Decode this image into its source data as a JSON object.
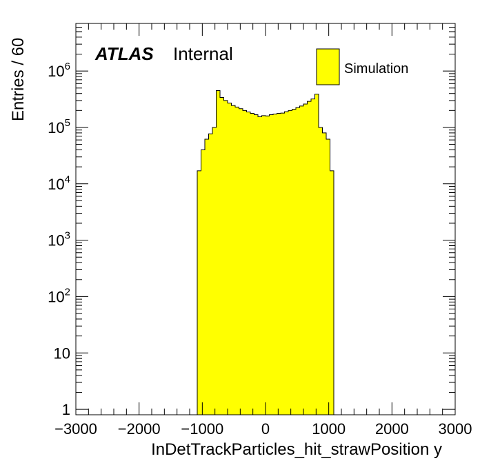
{
  "header": {
    "experiment": "ATLAS",
    "status": "Internal"
  },
  "legend": {
    "label": "Simulation",
    "color": "#ffff00",
    "placement": "top-right"
  },
  "chart_data": {
    "type": "bar",
    "xlabel": "InDetTrackParticles_hit_strawPosition y",
    "ylabel": "Entries / 60",
    "xlim": [
      -3000,
      3000
    ],
    "ylim": [
      0.8,
      7000000
    ],
    "yscale": "log",
    "grid": false,
    "bin_width": 60,
    "x_tick_labels": [
      "−3000",
      "−2000",
      "−1000",
      "0",
      "1000",
      "2000",
      "3000"
    ],
    "y_tick_labels": [
      {
        "value": 1,
        "base": "1",
        "exp": ""
      },
      {
        "value": 10,
        "base": "10",
        "exp": ""
      },
      {
        "value": 100,
        "base": "10",
        "exp": "2"
      },
      {
        "value": 1000,
        "base": "10",
        "exp": "3"
      },
      {
        "value": 10000,
        "base": "10",
        "exp": "4"
      },
      {
        "value": 100000,
        "base": "10",
        "exp": "5"
      },
      {
        "value": 1000000,
        "base": "10",
        "exp": "6"
      }
    ],
    "series": [
      {
        "name": "Simulation",
        "color": "#ffff00",
        "x_low_edges": [
          -1080,
          -1020,
          -960,
          -900,
          -840,
          -780,
          -720,
          -660,
          -600,
          -540,
          -480,
          -420,
          -360,
          -300,
          -240,
          -180,
          -120,
          -60,
          0,
          60,
          120,
          180,
          240,
          300,
          360,
          420,
          480,
          540,
          600,
          660,
          720,
          780,
          840,
          900,
          960,
          1020
        ],
        "values": [
          17000,
          40000,
          62000,
          77000,
          100000,
          450000,
          340000,
          300000,
          270000,
          245000,
          230000,
          215000,
          200000,
          188000,
          178000,
          168000,
          155000,
          162000,
          160000,
          168000,
          173000,
          178000,
          180000,
          190000,
          200000,
          210000,
          225000,
          240000,
          260000,
          290000,
          320000,
          390000,
          100000,
          80000,
          62000,
          17000
        ]
      }
    ]
  }
}
